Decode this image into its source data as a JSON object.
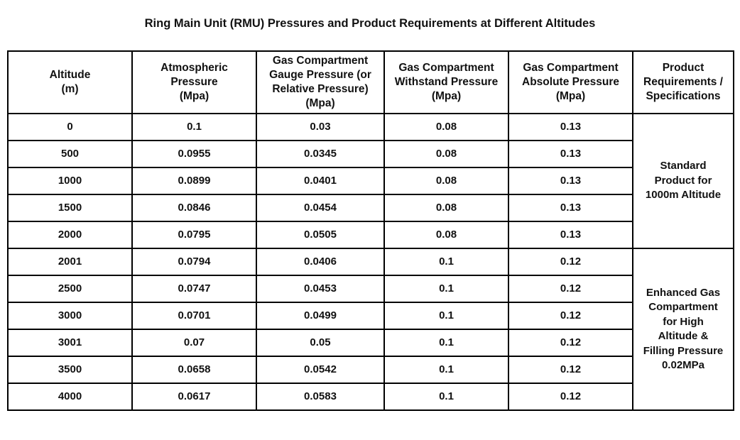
{
  "title": "Ring Main Unit (RMU) Pressures and Product Requirements at Different Altitudes",
  "colors": {
    "text": "#111111",
    "border": "#000000",
    "background": "#ffffff"
  },
  "table": {
    "header": {
      "altitude": "Altitude\n(m)",
      "atmospheric_pressure": "Atmospheric\nPressure\n(Mpa)",
      "gauge_pressure": "Gas Compartment\nGauge Pressure (or\nRelative Pressure)\n(Mpa)",
      "withstand_pressure": "Gas Compartment\nWithstand Pressure\n(Mpa)",
      "absolute_pressure": "Gas Compartment\nAbsolute Pressure\n(Mpa)",
      "product_requirements": "Product\nRequirements /\nSpecifications"
    },
    "groups": [
      {
        "product_note": "Standard\nProduct for\n1000m Altitude",
        "rows": [
          {
            "altitude": "0",
            "atmospheric": "0.1",
            "gauge": "0.03",
            "withstand": "0.08",
            "absolute": "0.13"
          },
          {
            "altitude": "500",
            "atmospheric": "0.0955",
            "gauge": "0.0345",
            "withstand": "0.08",
            "absolute": "0.13"
          },
          {
            "altitude": "1000",
            "atmospheric": "0.0899",
            "gauge": "0.0401",
            "withstand": "0.08",
            "absolute": "0.13"
          },
          {
            "altitude": "1500",
            "atmospheric": "0.0846",
            "gauge": "0.0454",
            "withstand": "0.08",
            "absolute": "0.13"
          },
          {
            "altitude": "2000",
            "atmospheric": "0.0795",
            "gauge": "0.0505",
            "withstand": "0.08",
            "absolute": "0.13"
          }
        ]
      },
      {
        "product_note": "Enhanced Gas\nCompartment\nfor High\nAltitude &\nFilling Pressure\n0.02MPa",
        "rows": [
          {
            "altitude": "2001",
            "atmospheric": "0.0794",
            "gauge": "0.0406",
            "withstand": "0.1",
            "absolute": "0.12"
          },
          {
            "altitude": "2500",
            "atmospheric": "0.0747",
            "gauge": "0.0453",
            "withstand": "0.1",
            "absolute": "0.12"
          },
          {
            "altitude": "3000",
            "atmospheric": "0.0701",
            "gauge": "0.0499",
            "withstand": "0.1",
            "absolute": "0.12"
          },
          {
            "altitude": "3001",
            "atmospheric": "0.07",
            "gauge": "0.05",
            "withstand": "0.1",
            "absolute": "0.12"
          },
          {
            "altitude": "3500",
            "atmospheric": "0.0658",
            "gauge": "0.0542",
            "withstand": "0.1",
            "absolute": "0.12"
          },
          {
            "altitude": "4000",
            "atmospheric": "0.0617",
            "gauge": "0.0583",
            "withstand": "0.1",
            "absolute": "0.12"
          }
        ]
      }
    ]
  }
}
